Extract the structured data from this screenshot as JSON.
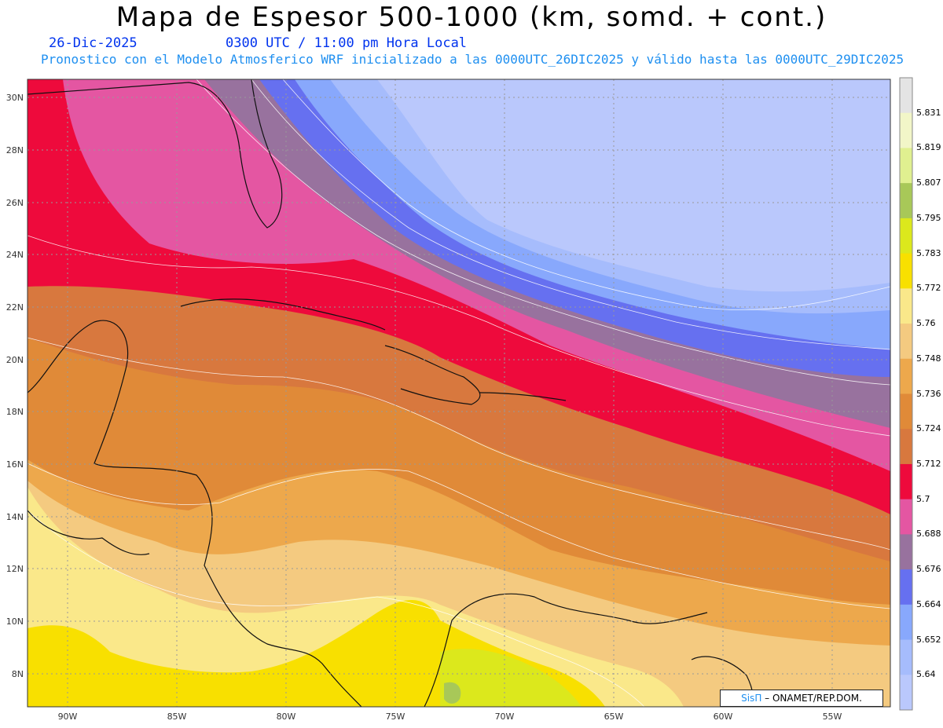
{
  "header": {
    "title": "Mapa de Espesor 500-1000 (km, somd. + cont.)",
    "date": "26-Dic-2025",
    "time": "0300 UTC / 11:00 pm Hora Local",
    "description": "Pronostico con el Modelo Atmosferico WRF inicializado a las 0000UTC_26DIC2025 y válido hasta las  0000UTC_29DIC2025"
  },
  "axes": {
    "lat_labels": [
      "30N",
      "28N",
      "26N",
      "24N",
      "22N",
      "20N",
      "18N",
      "16N",
      "14N",
      "12N",
      "10N",
      "8N"
    ],
    "lon_labels": [
      "90W",
      "85W",
      "80W",
      "75W",
      "70W",
      "65W",
      "60W",
      "55W"
    ]
  },
  "colorbar": {
    "labels": [
      "5.831",
      "5.819",
      "5.807",
      "5.795",
      "5.783",
      "5.772",
      "5.76",
      "5.748",
      "5.736",
      "5.724",
      "5.712",
      "5.7",
      "5.688",
      "5.676",
      "5.664",
      "5.652",
      "5.64"
    ],
    "colors": [
      "#e4e4e4",
      "#f2f6c8",
      "#e0f090",
      "#a8c858",
      "#dce81c",
      "#f8e000",
      "#fae88a",
      "#f4ca80",
      "#eda84c",
      "#e08a38",
      "#d8783e",
      "#ee0a3c",
      "#e456a2",
      "#98729e",
      "#6670f0",
      "#88a8fc",
      "#a6bcfc",
      "#bac8fc"
    ]
  },
  "credit": {
    "brand": "SisΠ",
    "text": "– ONAMET/REP.DOM."
  }
}
